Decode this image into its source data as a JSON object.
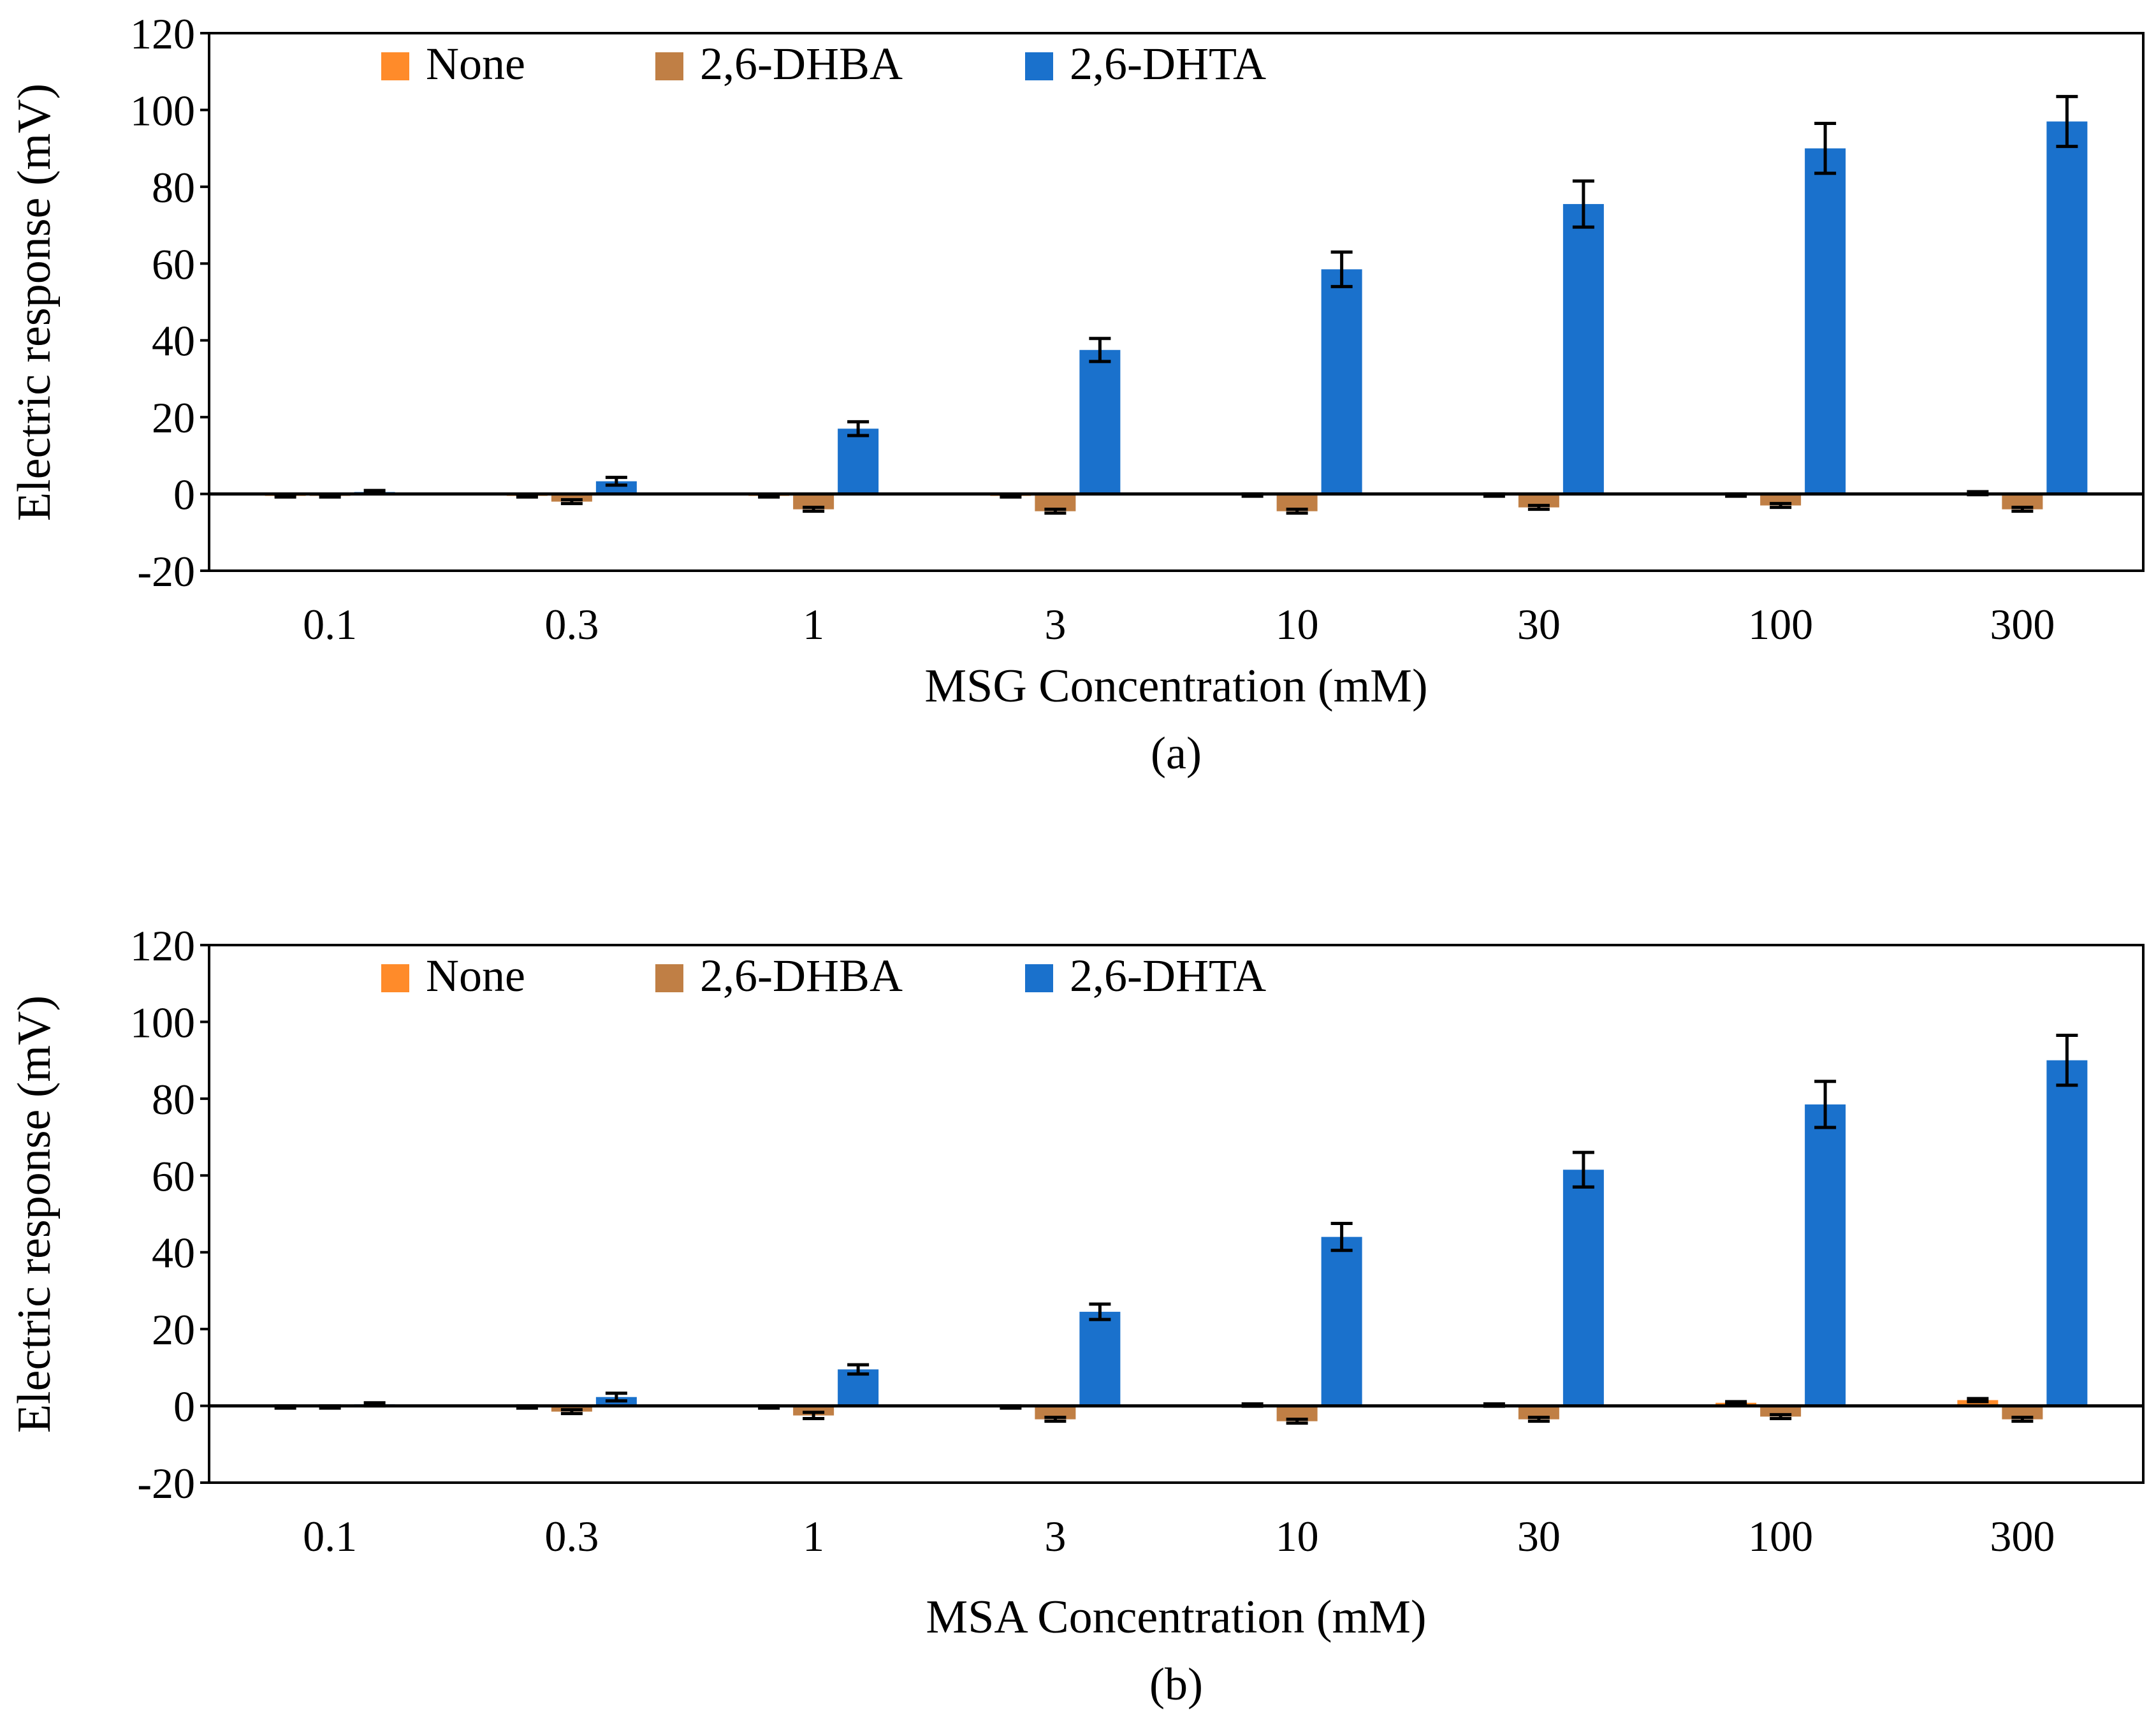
{
  "chart_data": [
    {
      "type": "bar",
      "panel_label": "(a)",
      "xlabel": "MSG Concentration (mM)",
      "ylabel": "Electric response (mV)",
      "categories": [
        "0.1",
        "0.3",
        "1",
        "3",
        "10",
        "30",
        "100",
        "300"
      ],
      "ylim": [
        -20,
        120
      ],
      "yticks": [
        -20,
        0,
        20,
        40,
        60,
        80,
        100,
        120
      ],
      "grid": false,
      "legend_position": "top-left",
      "series": [
        {
          "name": "None",
          "color": "#FF8B2A",
          "values": [
            -0.5,
            -0.5,
            -0.5,
            -0.5,
            -0.3,
            -0.3,
            -0.3,
            0.2
          ],
          "errors": [
            0.3,
            0.3,
            0.3,
            0.3,
            0.3,
            0.3,
            0.3,
            0.4
          ]
        },
        {
          "name": "2,6-DHBA",
          "color": "#C07F45",
          "values": [
            -0.5,
            -2,
            -4,
            -4.5,
            -4.5,
            -3.5,
            -3,
            -4
          ],
          "errors": [
            0.3,
            0.5,
            0.5,
            0.5,
            0.5,
            0.5,
            0.5,
            0.5
          ]
        },
        {
          "name": "2,6-DHTA",
          "color": "#1A71CC",
          "values": [
            0.5,
            3.3,
            17,
            37.5,
            58.5,
            75.5,
            90,
            97
          ],
          "errors": [
            0.4,
            1,
            1.8,
            3,
            4.5,
            6,
            6.5,
            6.5
          ]
        }
      ]
    },
    {
      "type": "bar",
      "panel_label": "(b)",
      "xlabel": "MSA Concentration (mM)",
      "ylabel": "Electric response (mV)",
      "categories": [
        "0.1",
        "0.3",
        "1",
        "3",
        "10",
        "30",
        "100",
        "300"
      ],
      "ylim": [
        -20,
        120
      ],
      "yticks": [
        -20,
        0,
        20,
        40,
        60,
        80,
        100,
        120
      ],
      "grid": false,
      "legend_position": "top-left",
      "series": [
        {
          "name": "None",
          "color": "#FF8B2A",
          "values": [
            -0.3,
            -0.3,
            -0.3,
            -0.3,
            0.2,
            0.2,
            0.8,
            1.5
          ],
          "errors": [
            0.3,
            0.3,
            0.3,
            0.3,
            0.3,
            0.3,
            0.3,
            0.4
          ]
        },
        {
          "name": "2,6-DHBA",
          "color": "#C07F45",
          "values": [
            -0.3,
            -1.5,
            -2.5,
            -3.5,
            -4,
            -3.5,
            -2.8,
            -3.5
          ],
          "errors": [
            0.3,
            0.5,
            0.8,
            0.5,
            0.5,
            0.5,
            0.5,
            0.5
          ]
        },
        {
          "name": "2,6-DHTA",
          "color": "#1A71CC",
          "values": [
            0.4,
            2.3,
            9.5,
            24.5,
            44,
            61.5,
            78.5,
            90
          ],
          "errors": [
            0.4,
            1,
            1.2,
            2,
            3.5,
            4.5,
            6,
            6.5
          ]
        }
      ]
    }
  ]
}
